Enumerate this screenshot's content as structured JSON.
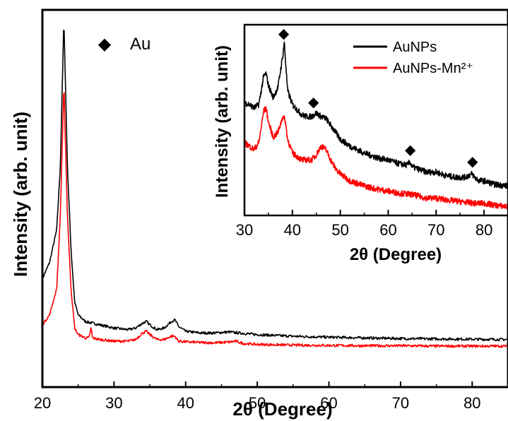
{
  "chart_data": [
    {
      "type": "line",
      "xlabel": "2θ (Degree)",
      "ylabel": "Intensity (arb. unit)",
      "xlim": [
        20,
        85
      ],
      "xticks": [
        20,
        30,
        40,
        50,
        60,
        70,
        80
      ],
      "ylim": [
        0,
        1
      ],
      "y_ticks_labeled": false,
      "grid": false,
      "annotation": {
        "marker": "◆",
        "text": "Au"
      },
      "series": [
        {
          "color": "#000000",
          "x": [
            20,
            21,
            22,
            22.5,
            23,
            23.5,
            24,
            24.5,
            25,
            26,
            27,
            28,
            30,
            32,
            33,
            34,
            34.5,
            35,
            36,
            37,
            38,
            38.5,
            39,
            40,
            42,
            44,
            46,
            48,
            50,
            55,
            60,
            65,
            70,
            75,
            80,
            85
          ],
          "y": [
            0.21,
            0.26,
            0.36,
            0.55,
            1.0,
            0.55,
            0.3,
            0.14,
            0.1,
            0.08,
            0.075,
            0.07,
            0.06,
            0.055,
            0.06,
            0.075,
            0.08,
            0.07,
            0.055,
            0.06,
            0.08,
            0.085,
            0.065,
            0.05,
            0.045,
            0.045,
            0.048,
            0.044,
            0.04,
            0.035,
            0.032,
            0.03,
            0.028,
            0.027,
            0.026,
            0.025
          ]
        },
        {
          "color": "#ff0000",
          "x": [
            20,
            21,
            22,
            22.5,
            23,
            23.5,
            24,
            24.5,
            25,
            26,
            26.5,
            26.8,
            27,
            28,
            30,
            32,
            33,
            34,
            34.5,
            35,
            36,
            37,
            38,
            38.5,
            39,
            40,
            42,
            44,
            46,
            47,
            48,
            50,
            55,
            60,
            65,
            70,
            75,
            80,
            85
          ],
          "y": [
            0.07,
            0.1,
            0.18,
            0.4,
            0.8,
            0.4,
            0.18,
            0.06,
            0.04,
            0.03,
            0.03,
            0.06,
            0.03,
            0.025,
            0.02,
            0.02,
            0.025,
            0.045,
            0.05,
            0.04,
            0.025,
            0.025,
            0.035,
            0.035,
            0.02,
            0.018,
            0.016,
            0.015,
            0.017,
            0.02,
            0.013,
            0.01,
            0.008,
            0.007,
            0.006,
            0.006,
            0.005,
            0.005,
            0.005
          ]
        }
      ]
    },
    {
      "type": "line",
      "xlabel": "2θ (Degree)",
      "ylabel": "Intensity (arb. unit)",
      "xlim": [
        30,
        85
      ],
      "xticks": [
        30,
        40,
        50,
        60,
        70,
        80
      ],
      "ylim": [
        0,
        1
      ],
      "y_ticks_labeled": false,
      "grid": false,
      "legend": {
        "position": "top-right",
        "entries": [
          {
            "name": "AuNPs",
            "color": "#000000"
          },
          {
            "name": "AuNPs-Mn²⁺",
            "color": "#ff0000"
          }
        ]
      },
      "au_marker_x": [
        38.2,
        44.4,
        64.6,
        77.6
      ],
      "series": [
        {
          "name": "AuNPs",
          "color": "#000000",
          "x": [
            30,
            31,
            32,
            33,
            34,
            34.5,
            35,
            36,
            37,
            38,
            38.3,
            39,
            40,
            41,
            42,
            43,
            44,
            45,
            46,
            47,
            48,
            49,
            50,
            52,
            55,
            58,
            60,
            62,
            64,
            64.5,
            65,
            66,
            68,
            70,
            72,
            74,
            76,
            77.5,
            78,
            79,
            80,
            82,
            85
          ],
          "y": [
            0.63,
            0.62,
            0.6,
            0.62,
            0.78,
            0.8,
            0.73,
            0.66,
            0.72,
            0.9,
            0.98,
            0.7,
            0.62,
            0.59,
            0.56,
            0.55,
            0.55,
            0.57,
            0.55,
            0.54,
            0.5,
            0.46,
            0.42,
            0.38,
            0.34,
            0.31,
            0.3,
            0.28,
            0.27,
            0.29,
            0.26,
            0.25,
            0.23,
            0.23,
            0.21,
            0.2,
            0.2,
            0.22,
            0.2,
            0.18,
            0.18,
            0.16,
            0.15
          ]
        },
        {
          "name": "AuNPs-Mn²⁺",
          "color": "#ff0000",
          "x": [
            30,
            31,
            32,
            33,
            34,
            34.5,
            35,
            36,
            37,
            38,
            38.5,
            39,
            40,
            42,
            44,
            45,
            46,
            47,
            48,
            49,
            50,
            52,
            55,
            58,
            60,
            62,
            65,
            68,
            70,
            72,
            75,
            78,
            80,
            82,
            85
          ],
          "y": [
            0.4,
            0.38,
            0.36,
            0.4,
            0.58,
            0.6,
            0.52,
            0.43,
            0.46,
            0.55,
            0.53,
            0.42,
            0.34,
            0.3,
            0.3,
            0.33,
            0.38,
            0.36,
            0.3,
            0.25,
            0.22,
            0.18,
            0.15,
            0.13,
            0.12,
            0.11,
            0.1,
            0.08,
            0.08,
            0.07,
            0.06,
            0.05,
            0.05,
            0.04,
            0.03
          ]
        }
      ]
    }
  ]
}
